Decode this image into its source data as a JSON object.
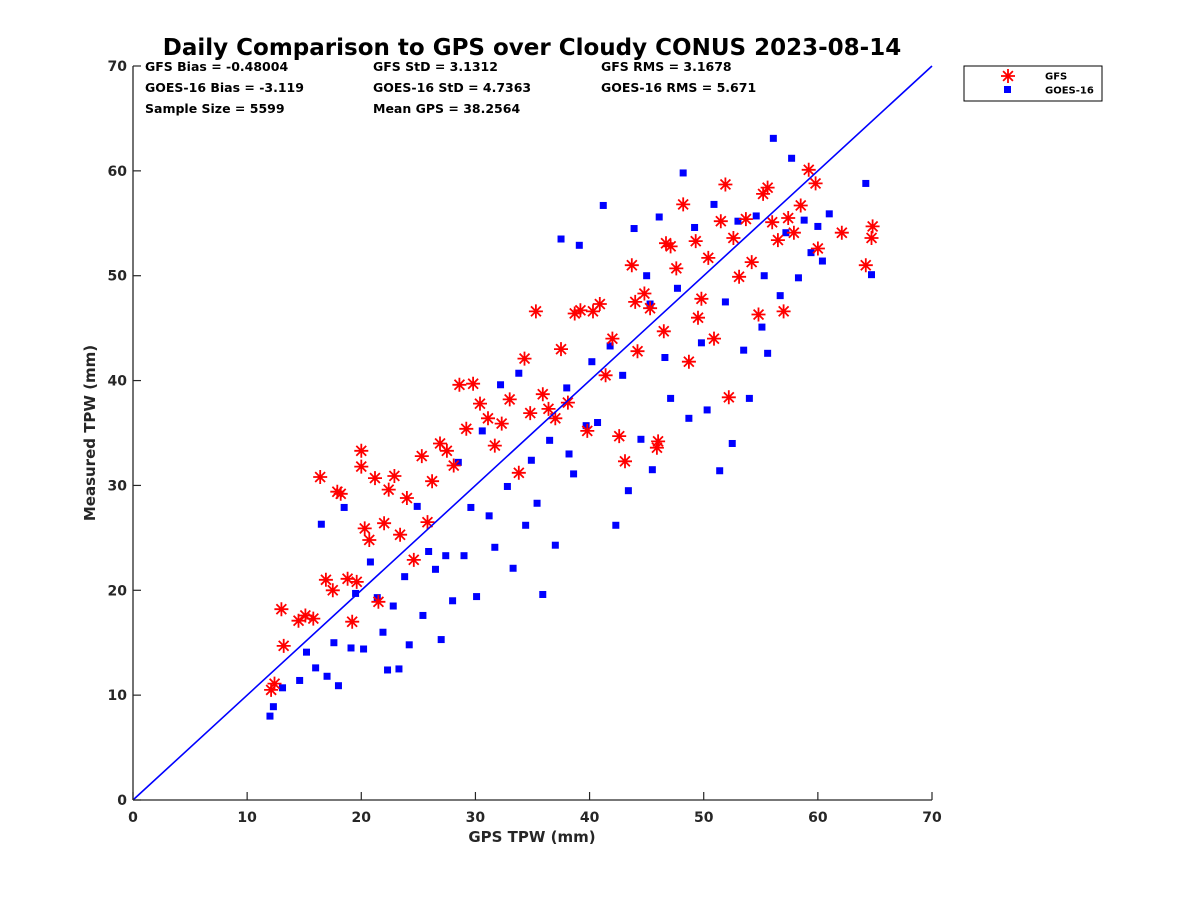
{
  "chart_data": {
    "type": "scatter",
    "title": "Daily Comparison to GPS over Cloudy CONUS 2023-08-14",
    "xlabel": "GPS TPW (mm)",
    "ylabel": "Measured TPW (mm)",
    "xlim": [
      0,
      70
    ],
    "ylim": [
      0,
      70
    ],
    "xticks": [
      "0",
      "10",
      "20",
      "30",
      "40",
      "50",
      "60",
      "70"
    ],
    "yticks": [
      "0",
      "10",
      "20",
      "30",
      "40",
      "50",
      "60",
      "70"
    ],
    "grid": false,
    "legend_position": "outside top-right",
    "stats": [
      [
        "GFS Bias = -0.48004",
        "GFS StD = 3.1312",
        "GFS RMS = 3.1678"
      ],
      [
        "GOES-16 Bias = -3.119",
        "GOES-16 StD = 4.7363",
        "GOES-16 RMS = 5.671"
      ],
      [
        "Sample Size = 5599",
        "Mean GPS = 38.2564",
        ""
      ]
    ],
    "reference_line": {
      "x": [
        0,
        70
      ],
      "y": [
        0,
        70
      ],
      "color": "#0000ff"
    },
    "series": [
      {
        "name": "GFS",
        "marker": "asterisk",
        "color": "#ff0000",
        "points": [
          [
            12.1,
            10.5
          ],
          [
            12.4,
            11.1
          ],
          [
            13.0,
            18.2
          ],
          [
            13.2,
            14.7
          ],
          [
            14.5,
            17.1
          ],
          [
            15.1,
            17.6
          ],
          [
            15.8,
            17.3
          ],
          [
            16.4,
            30.8
          ],
          [
            16.9,
            21.0
          ],
          [
            17.5,
            20.0
          ],
          [
            17.9,
            29.4
          ],
          [
            18.2,
            29.2
          ],
          [
            18.8,
            21.1
          ],
          [
            19.2,
            17.0
          ],
          [
            19.6,
            20.8
          ],
          [
            20.0,
            33.3
          ],
          [
            20.0,
            31.8
          ],
          [
            20.3,
            25.9
          ],
          [
            20.7,
            24.8
          ],
          [
            21.2,
            30.7
          ],
          [
            21.5,
            18.9
          ],
          [
            22.0,
            26.4
          ],
          [
            22.4,
            29.6
          ],
          [
            22.9,
            30.9
          ],
          [
            23.4,
            25.3
          ],
          [
            24.0,
            28.8
          ],
          [
            24.6,
            22.9
          ],
          [
            25.3,
            32.8
          ],
          [
            25.8,
            26.5
          ],
          [
            26.2,
            30.4
          ],
          [
            26.9,
            34.0
          ],
          [
            27.5,
            33.3
          ],
          [
            28.1,
            31.9
          ],
          [
            28.6,
            39.6
          ],
          [
            29.2,
            35.4
          ],
          [
            29.8,
            39.7
          ],
          [
            30.4,
            37.8
          ],
          [
            31.1,
            36.4
          ],
          [
            31.7,
            33.8
          ],
          [
            32.3,
            35.9
          ],
          [
            33.0,
            38.2
          ],
          [
            33.8,
            31.2
          ],
          [
            34.3,
            42.1
          ],
          [
            34.8,
            36.9
          ],
          [
            35.3,
            46.6
          ],
          [
            35.9,
            38.7
          ],
          [
            36.4,
            37.3
          ],
          [
            37.0,
            36.4
          ],
          [
            37.5,
            43.0
          ],
          [
            38.1,
            37.9
          ],
          [
            38.7,
            46.4
          ],
          [
            39.2,
            46.7
          ],
          [
            39.8,
            35.2
          ],
          [
            40.3,
            46.6
          ],
          [
            40.9,
            47.3
          ],
          [
            41.4,
            40.5
          ],
          [
            42.0,
            44.0
          ],
          [
            42.6,
            34.7
          ],
          [
            43.1,
            32.3
          ],
          [
            43.7,
            51.0
          ],
          [
            44.2,
            42.8
          ],
          [
            44.8,
            48.3
          ],
          [
            45.3,
            46.9
          ],
          [
            45.9,
            33.6
          ],
          [
            46.0,
            34.2
          ],
          [
            46.5,
            44.7
          ],
          [
            47.1,
            52.8
          ],
          [
            47.6,
            50.7
          ],
          [
            48.2,
            56.8
          ],
          [
            48.7,
            41.8
          ],
          [
            49.3,
            53.3
          ],
          [
            49.8,
            47.8
          ],
          [
            50.4,
            51.7
          ],
          [
            50.9,
            44.0
          ],
          [
            51.5,
            55.2
          ],
          [
            51.9,
            58.7
          ],
          [
            52.2,
            38.4
          ],
          [
            52.6,
            53.6
          ],
          [
            53.1,
            49.9
          ],
          [
            53.7,
            55.4
          ],
          [
            54.2,
            51.3
          ],
          [
            54.8,
            46.3
          ],
          [
            55.2,
            57.8
          ],
          [
            55.6,
            58.4
          ],
          [
            56.0,
            55.1
          ],
          [
            56.5,
            53.4
          ],
          [
            57.0,
            46.6
          ],
          [
            57.4,
            55.5
          ],
          [
            57.9,
            54.1
          ],
          [
            58.5,
            56.7
          ],
          [
            59.2,
            60.1
          ],
          [
            59.8,
            58.8
          ],
          [
            60.0,
            52.6
          ],
          [
            62.1,
            54.1
          ],
          [
            64.2,
            51.0
          ],
          [
            64.7,
            53.6
          ],
          [
            64.8,
            54.7
          ],
          [
            49.5,
            46.0
          ],
          [
            46.7,
            53.1
          ],
          [
            44.0,
            47.5
          ]
        ]
      },
      {
        "name": "GOES-16",
        "marker": "square",
        "color": "#0000ff",
        "points": [
          [
            12.0,
            8.0
          ],
          [
            12.3,
            8.9
          ],
          [
            13.1,
            10.7
          ],
          [
            14.6,
            11.4
          ],
          [
            15.2,
            14.1
          ],
          [
            16.0,
            12.6
          ],
          [
            16.5,
            26.3
          ],
          [
            17.0,
            11.8
          ],
          [
            17.6,
            15.0
          ],
          [
            18.0,
            10.9
          ],
          [
            18.5,
            27.9
          ],
          [
            19.1,
            14.5
          ],
          [
            19.5,
            19.7
          ],
          [
            20.2,
            14.4
          ],
          [
            20.8,
            22.7
          ],
          [
            21.4,
            19.3
          ],
          [
            21.9,
            16.0
          ],
          [
            22.3,
            12.4
          ],
          [
            22.8,
            18.5
          ],
          [
            23.3,
            12.5
          ],
          [
            23.8,
            21.3
          ],
          [
            24.2,
            14.8
          ],
          [
            24.9,
            28.0
          ],
          [
            25.4,
            17.6
          ],
          [
            25.9,
            23.7
          ],
          [
            26.5,
            22.0
          ],
          [
            27.0,
            15.3
          ],
          [
            27.4,
            23.3
          ],
          [
            28.0,
            19.0
          ],
          [
            28.5,
            32.2
          ],
          [
            29.0,
            23.3
          ],
          [
            29.6,
            27.9
          ],
          [
            30.1,
            19.4
          ],
          [
            30.6,
            35.2
          ],
          [
            31.2,
            27.1
          ],
          [
            31.7,
            24.1
          ],
          [
            32.2,
            39.6
          ],
          [
            32.8,
            29.9
          ],
          [
            33.3,
            22.1
          ],
          [
            33.8,
            40.7
          ],
          [
            34.4,
            26.2
          ],
          [
            34.9,
            32.4
          ],
          [
            35.4,
            28.3
          ],
          [
            35.9,
            19.6
          ],
          [
            36.5,
            34.3
          ],
          [
            37.0,
            24.3
          ],
          [
            37.5,
            53.5
          ],
          [
            38.0,
            39.3
          ],
          [
            38.6,
            31.1
          ],
          [
            39.1,
            52.9
          ],
          [
            39.7,
            35.7
          ],
          [
            40.2,
            41.8
          ],
          [
            40.7,
            36.0
          ],
          [
            41.2,
            56.7
          ],
          [
            41.8,
            43.3
          ],
          [
            42.3,
            26.2
          ],
          [
            42.9,
            40.5
          ],
          [
            43.4,
            29.5
          ],
          [
            43.9,
            54.5
          ],
          [
            44.5,
            34.4
          ],
          [
            45.0,
            50.0
          ],
          [
            45.5,
            31.5
          ],
          [
            46.1,
            55.6
          ],
          [
            46.6,
            42.2
          ],
          [
            47.1,
            38.3
          ],
          [
            47.7,
            48.8
          ],
          [
            48.2,
            59.8
          ],
          [
            48.7,
            36.4
          ],
          [
            49.2,
            54.6
          ],
          [
            49.8,
            43.6
          ],
          [
            50.3,
            37.2
          ],
          [
            50.9,
            56.8
          ],
          [
            51.4,
            31.4
          ],
          [
            51.9,
            47.5
          ],
          [
            52.5,
            34.0
          ],
          [
            53.0,
            55.2
          ],
          [
            53.5,
            42.9
          ],
          [
            54.0,
            38.3
          ],
          [
            54.6,
            55.7
          ],
          [
            55.1,
            45.1
          ],
          [
            55.6,
            42.6
          ],
          [
            56.1,
            63.1
          ],
          [
            56.7,
            48.1
          ],
          [
            57.2,
            54.1
          ],
          [
            57.7,
            61.2
          ],
          [
            58.3,
            49.8
          ],
          [
            58.8,
            55.3
          ],
          [
            59.4,
            52.2
          ],
          [
            60.0,
            54.7
          ],
          [
            61.0,
            55.9
          ],
          [
            64.2,
            58.8
          ],
          [
            64.7,
            50.1
          ],
          [
            60.4,
            51.4
          ],
          [
            55.3,
            50.0
          ],
          [
            45.3,
            47.3
          ],
          [
            38.2,
            33.0
          ]
        ]
      }
    ]
  }
}
